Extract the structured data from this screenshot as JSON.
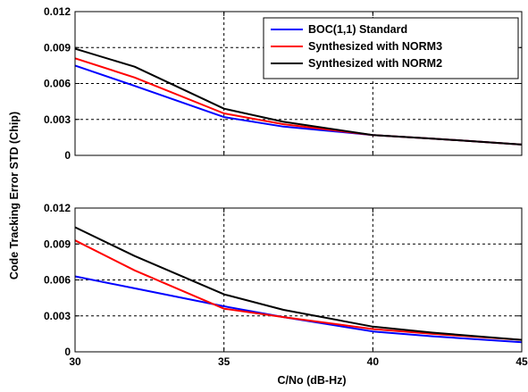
{
  "chart_data": {
    "type": "line",
    "ylabel": "Code Tracking Error STD (Chip)",
    "xlabel": "C/No (dB-Hz)",
    "colors": {
      "boc": "#0000ff",
      "norm3": "#ff0000",
      "norm2": "#000000"
    },
    "subplots": [
      {
        "xlim": [
          30,
          45
        ],
        "ylim": [
          0,
          0.012
        ],
        "grid": true,
        "x_ticks": [
          30,
          35,
          40,
          45
        ],
        "x_tick_labels": [
          "",
          "",
          "",
          ""
        ],
        "y_ticks": [
          0,
          0.003,
          0.006,
          0.009,
          0.012
        ],
        "y_tick_labels": [
          "0",
          "0.003",
          "0.006",
          "0.009",
          "0.012"
        ],
        "legend": {
          "position": "top-right",
          "entries": [
            "BOC(1,1) Standard",
            "Synthesized with NORM3",
            "Synthesized with NORM2"
          ]
        },
        "series": [
          {
            "name": "BOC(1,1) Standard",
            "color_key": "boc",
            "x": [
              30,
              32,
              35,
              37,
              40,
              42,
              45
            ],
            "y": [
              0.0075,
              0.0058,
              0.0032,
              0.0024,
              0.0017,
              0.0014,
              0.0009
            ]
          },
          {
            "name": "Synthesized with NORM3",
            "color_key": "norm3",
            "x": [
              30,
              32,
              35,
              37,
              40,
              42,
              45
            ],
            "y": [
              0.0081,
              0.0065,
              0.0035,
              0.0026,
              0.0017,
              0.0014,
              0.0009
            ]
          },
          {
            "name": "Synthesized with NORM2",
            "color_key": "norm2",
            "x": [
              30,
              32,
              35,
              37,
              40,
              42,
              45
            ],
            "y": [
              0.0089,
              0.0074,
              0.0039,
              0.0028,
              0.0017,
              0.0014,
              0.0009
            ]
          }
        ]
      },
      {
        "xlim": [
          30,
          45
        ],
        "ylim": [
          0,
          0.012
        ],
        "grid": true,
        "x_ticks": [
          30,
          35,
          40,
          45
        ],
        "x_tick_labels": [
          "30",
          "35",
          "40",
          "45"
        ],
        "y_ticks": [
          0,
          0.003,
          0.006,
          0.009,
          0.012
        ],
        "y_tick_labels": [
          "0",
          "0.003",
          "0.006",
          "0.009",
          "0.012"
        ],
        "series": [
          {
            "name": "BOC(1,1) Standard",
            "color_key": "boc",
            "x": [
              30,
              32,
              35,
              37,
              40,
              42,
              45
            ],
            "y": [
              0.0063,
              0.0053,
              0.0038,
              0.0029,
              0.0017,
              0.0013,
              0.0008
            ]
          },
          {
            "name": "Synthesized with NORM3",
            "color_key": "norm3",
            "x": [
              30,
              32,
              35,
              37,
              40,
              42,
              45
            ],
            "y": [
              0.0093,
              0.0068,
              0.0036,
              0.0029,
              0.0019,
              0.0015,
              0.001
            ]
          },
          {
            "name": "Synthesized with NORM2",
            "color_key": "norm2",
            "x": [
              30,
              32,
              35,
              37,
              40,
              42,
              45
            ],
            "y": [
              0.0104,
              0.008,
              0.0048,
              0.0035,
              0.0021,
              0.0016,
              0.001
            ]
          }
        ]
      }
    ]
  }
}
